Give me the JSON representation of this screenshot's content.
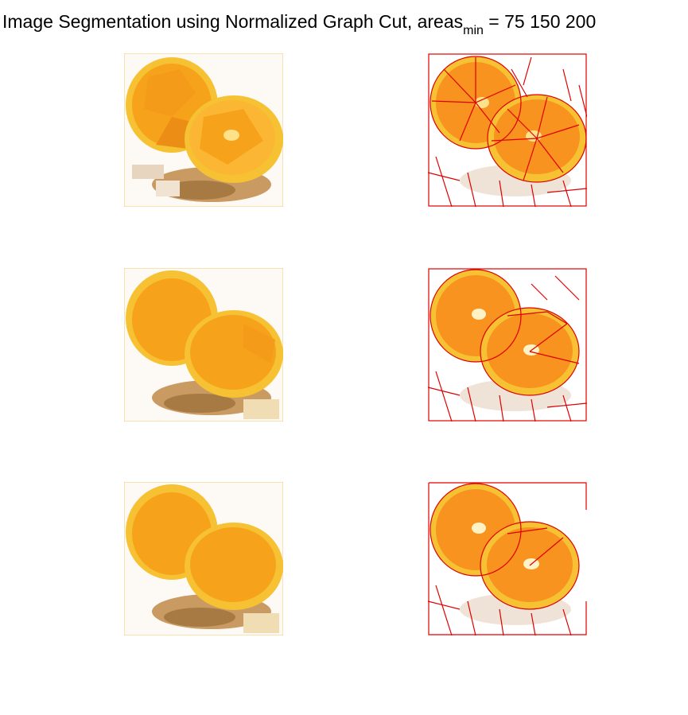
{
  "title": {
    "prefix": "Image Segmentation using Normalized Graph Cut, areas",
    "subscript": "min",
    "suffix": " = 75  150  200"
  },
  "panels": [
    {
      "min_area": 75,
      "kind": "segmented"
    },
    {
      "min_area": 75,
      "kind": "boundaries"
    },
    {
      "min_area": 150,
      "kind": "segmented"
    },
    {
      "min_area": 150,
      "kind": "boundaries"
    },
    {
      "min_area": 200,
      "kind": "segmented"
    },
    {
      "min_area": 200,
      "kind": "boundaries"
    }
  ],
  "colors": {
    "orange_flesh": "#f7a21b",
    "orange_light": "#fbb733",
    "peel": "#f6c132",
    "pith": "#fde28a",
    "shadow": "#b9894e",
    "boundary": "#e00000"
  }
}
